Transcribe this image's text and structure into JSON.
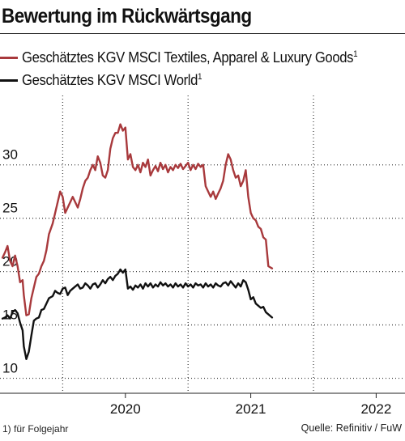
{
  "header": {
    "title": "Bewertung im Rückwärtsgang"
  },
  "legend": [
    {
      "label": "Geschätztes KGV MSCI Textiles, Apparel & Luxury Goods",
      "sup": "1",
      "color": "#a8393c"
    },
    {
      "label": "Geschätztes KGV MSCI World",
      "sup": "1",
      "color": "#111111"
    }
  ],
  "footer": {
    "footnote": "1) für Folgejahr",
    "source": "Quelle: Refinitiv / FuW"
  },
  "chart_data": {
    "type": "line",
    "title": "Bewertung im Rückwärtsgang",
    "xlabel": "",
    "ylabel": "",
    "x_range": [
      2019.0,
      2022.23
    ],
    "ylim": [
      8.6,
      36.5
    ],
    "y_ticks": [
      10,
      15,
      20,
      25,
      30
    ],
    "x_ticks": [
      {
        "value": 2020.0,
        "label": "2020"
      },
      {
        "value": 2021.0,
        "label": "2021"
      },
      {
        "value": 2022.0,
        "label": "2022"
      }
    ],
    "vertical_gridlines_at": [
      2019.5,
      2020.5,
      2021.5
    ],
    "grid": "dotted",
    "legend_position": "top-left",
    "series": [
      {
        "name": "Geschätztes KGV MSCI Textiles, Apparel & Luxury Goods",
        "color": "#a8393c",
        "points": [
          [
            2019.02,
            21.3
          ],
          [
            2019.04,
            21.8
          ],
          [
            2019.06,
            22.4
          ],
          [
            2019.08,
            21.0
          ],
          [
            2019.1,
            20.5
          ],
          [
            2019.12,
            21.5
          ],
          [
            2019.14,
            20.5
          ],
          [
            2019.16,
            19.0
          ],
          [
            2019.18,
            19.2
          ],
          [
            2019.19,
            17.8
          ],
          [
            2019.21,
            15.9
          ],
          [
            2019.23,
            16.0
          ],
          [
            2019.25,
            17.5
          ],
          [
            2019.27,
            18.5
          ],
          [
            2019.29,
            19.5
          ],
          [
            2019.31,
            19.8
          ],
          [
            2019.33,
            20.5
          ],
          [
            2019.35,
            21.0
          ],
          [
            2019.37,
            22.0
          ],
          [
            2019.39,
            23.5
          ],
          [
            2019.42,
            24.5
          ],
          [
            2019.44,
            25.5
          ],
          [
            2019.46,
            26.5
          ],
          [
            2019.48,
            27.5
          ],
          [
            2019.5,
            27.0
          ],
          [
            2019.52,
            25.5
          ],
          [
            2019.54,
            26.0
          ],
          [
            2019.56,
            26.5
          ],
          [
            2019.58,
            27.0
          ],
          [
            2019.6,
            26.5
          ],
          [
            2019.62,
            26.0
          ],
          [
            2019.64,
            26.8
          ],
          [
            2019.66,
            27.8
          ],
          [
            2019.68,
            28.5
          ],
          [
            2019.7,
            28.8
          ],
          [
            2019.72,
            29.5
          ],
          [
            2019.74,
            30.0
          ],
          [
            2019.76,
            29.5
          ],
          [
            2019.78,
            30.8
          ],
          [
            2019.8,
            30.2
          ],
          [
            2019.82,
            29.0
          ],
          [
            2019.84,
            28.8
          ],
          [
            2019.86,
            29.5
          ],
          [
            2019.88,
            31.5
          ],
          [
            2019.9,
            32.5
          ],
          [
            2019.92,
            33.0
          ],
          [
            2019.94,
            33.0
          ],
          [
            2019.96,
            33.8
          ],
          [
            2019.98,
            33.2
          ],
          [
            2020.0,
            33.5
          ],
          [
            2020.02,
            30.5
          ],
          [
            2020.04,
            31.0
          ],
          [
            2020.06,
            29.8
          ],
          [
            2020.08,
            29.5
          ],
          [
            2020.1,
            30.0
          ],
          [
            2020.12,
            29.3
          ],
          [
            2020.14,
            30.2
          ],
          [
            2020.16,
            29.8
          ],
          [
            2020.18,
            30.5
          ],
          [
            2020.2,
            29.0
          ],
          [
            2020.22,
            29.5
          ],
          [
            2020.24,
            29.9
          ],
          [
            2020.26,
            29.4
          ],
          [
            2020.28,
            30.2
          ],
          [
            2020.3,
            29.6
          ],
          [
            2020.32,
            30.0
          ],
          [
            2020.34,
            29.3
          ],
          [
            2020.36,
            29.8
          ],
          [
            2020.38,
            29.5
          ],
          [
            2020.4,
            30.0
          ],
          [
            2020.42,
            29.7
          ],
          [
            2020.44,
            30.1
          ],
          [
            2020.46,
            29.6
          ],
          [
            2020.48,
            29.9
          ],
          [
            2020.5,
            30.2
          ],
          [
            2020.52,
            29.5
          ],
          [
            2020.54,
            30.0
          ],
          [
            2020.56,
            29.6
          ],
          [
            2020.58,
            30.1
          ],
          [
            2020.6,
            29.8
          ],
          [
            2020.62,
            30.0
          ],
          [
            2020.64,
            28.0
          ],
          [
            2020.66,
            27.5
          ],
          [
            2020.68,
            27.0
          ],
          [
            2020.7,
            27.5
          ],
          [
            2020.72,
            26.8
          ],
          [
            2020.74,
            27.3
          ],
          [
            2020.76,
            27.8
          ],
          [
            2020.78,
            28.5
          ],
          [
            2020.8,
            30.0
          ],
          [
            2020.82,
            31.0
          ],
          [
            2020.84,
            30.5
          ],
          [
            2020.86,
            29.5
          ],
          [
            2020.88,
            28.8
          ],
          [
            2020.9,
            29.0
          ],
          [
            2020.92,
            28.0
          ],
          [
            2020.94,
            28.5
          ],
          [
            2020.96,
            29.5
          ],
          [
            2020.98,
            27.0
          ],
          [
            2021.0,
            25.5
          ],
          [
            2021.02,
            25.0
          ],
          [
            2021.04,
            24.8
          ],
          [
            2021.06,
            24.2
          ],
          [
            2021.08,
            24.0
          ],
          [
            2021.1,
            23.2
          ],
          [
            2021.12,
            23.0
          ],
          [
            2021.14,
            20.5
          ],
          [
            2021.17,
            20.3
          ]
        ]
      },
      {
        "name": "Geschätztes KGV MSCI World",
        "color": "#111111",
        "points": [
          [
            2019.02,
            15.6
          ],
          [
            2019.04,
            15.7
          ],
          [
            2019.06,
            15.9
          ],
          [
            2019.08,
            15.6
          ],
          [
            2019.1,
            16.2
          ],
          [
            2019.12,
            16.4
          ],
          [
            2019.14,
            16.1
          ],
          [
            2019.16,
            15.2
          ],
          [
            2019.18,
            14.5
          ],
          [
            2019.19,
            13.0
          ],
          [
            2019.21,
            11.8
          ],
          [
            2019.23,
            12.5
          ],
          [
            2019.25,
            14.0
          ],
          [
            2019.27,
            15.4
          ],
          [
            2019.29,
            15.6
          ],
          [
            2019.31,
            15.7
          ],
          [
            2019.33,
            16.4
          ],
          [
            2019.35,
            16.5
          ],
          [
            2019.37,
            17.0
          ],
          [
            2019.39,
            17.5
          ],
          [
            2019.42,
            17.7
          ],
          [
            2019.44,
            18.2
          ],
          [
            2019.46,
            18.0
          ],
          [
            2019.48,
            17.9
          ],
          [
            2019.5,
            18.4
          ],
          [
            2019.52,
            18.5
          ],
          [
            2019.54,
            17.8
          ],
          [
            2019.56,
            18.2
          ],
          [
            2019.58,
            18.4
          ],
          [
            2019.6,
            18.6
          ],
          [
            2019.62,
            18.8
          ],
          [
            2019.64,
            18.4
          ],
          [
            2019.66,
            18.5
          ],
          [
            2019.68,
            18.9
          ],
          [
            2019.7,
            18.7
          ],
          [
            2019.72,
            18.4
          ],
          [
            2019.74,
            18.8
          ],
          [
            2019.76,
            18.9
          ],
          [
            2019.78,
            18.5
          ],
          [
            2019.8,
            18.8
          ],
          [
            2019.82,
            19.2
          ],
          [
            2019.84,
            18.9
          ],
          [
            2019.86,
            19.3
          ],
          [
            2019.88,
            19.5
          ],
          [
            2019.9,
            19.2
          ],
          [
            2019.92,
            19.6
          ],
          [
            2019.94,
            19.8
          ],
          [
            2019.96,
            20.2
          ],
          [
            2019.98,
            19.9
          ],
          [
            2020.0,
            20.2
          ],
          [
            2020.02,
            18.4
          ],
          [
            2020.04,
            18.6
          ],
          [
            2020.06,
            18.3
          ],
          [
            2020.08,
            18.7
          ],
          [
            2020.1,
            18.5
          ],
          [
            2020.12,
            18.8
          ],
          [
            2020.14,
            18.4
          ],
          [
            2020.16,
            18.9
          ],
          [
            2020.18,
            18.6
          ],
          [
            2020.2,
            18.9
          ],
          [
            2020.22,
            18.5
          ],
          [
            2020.24,
            18.8
          ],
          [
            2020.26,
            18.6
          ],
          [
            2020.28,
            19.0
          ],
          [
            2020.3,
            18.7
          ],
          [
            2020.32,
            18.9
          ],
          [
            2020.34,
            18.6
          ],
          [
            2020.36,
            18.8
          ],
          [
            2020.38,
            18.5
          ],
          [
            2020.4,
            18.9
          ],
          [
            2020.42,
            18.6
          ],
          [
            2020.44,
            18.8
          ],
          [
            2020.46,
            18.5
          ],
          [
            2020.48,
            18.9
          ],
          [
            2020.5,
            18.6
          ],
          [
            2020.52,
            18.8
          ],
          [
            2020.54,
            18.5
          ],
          [
            2020.56,
            18.9
          ],
          [
            2020.58,
            18.7
          ],
          [
            2020.6,
            18.8
          ],
          [
            2020.62,
            18.5
          ],
          [
            2020.64,
            18.9
          ],
          [
            2020.66,
            18.6
          ],
          [
            2020.68,
            18.8
          ],
          [
            2020.7,
            18.5
          ],
          [
            2020.72,
            18.9
          ],
          [
            2020.74,
            18.7
          ],
          [
            2020.76,
            18.6
          ],
          [
            2020.78,
            18.9
          ],
          [
            2020.8,
            19.0
          ],
          [
            2020.82,
            18.7
          ],
          [
            2020.84,
            19.1
          ],
          [
            2020.86,
            18.8
          ],
          [
            2020.88,
            18.5
          ],
          [
            2020.9,
            18.9
          ],
          [
            2020.92,
            18.6
          ],
          [
            2020.94,
            19.2
          ],
          [
            2020.96,
            19.0
          ],
          [
            2020.98,
            18.3
          ],
          [
            2021.0,
            17.4
          ],
          [
            2021.02,
            17.6
          ],
          [
            2021.04,
            17.0
          ],
          [
            2021.06,
            16.8
          ],
          [
            2021.08,
            16.6
          ],
          [
            2021.1,
            16.7
          ],
          [
            2021.12,
            16.2
          ],
          [
            2021.14,
            16.0
          ],
          [
            2021.17,
            15.7
          ]
        ]
      }
    ]
  }
}
